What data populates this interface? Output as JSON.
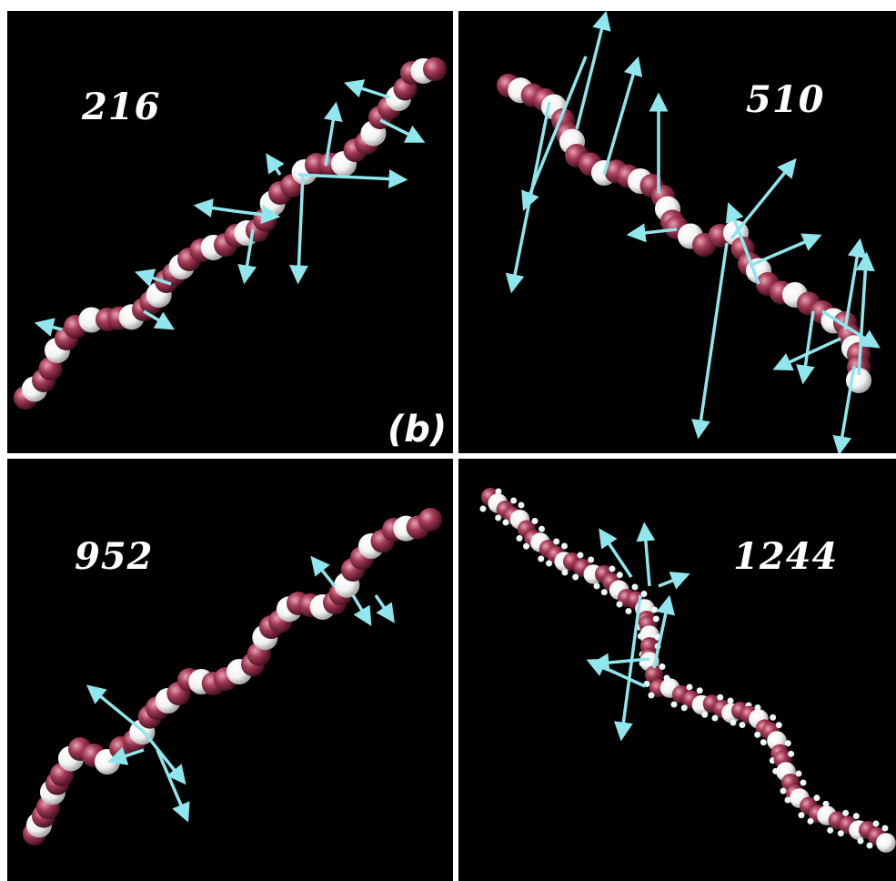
{
  "figure_label": "(b)",
  "colors": {
    "background": "#000000",
    "divider": "#ffffff",
    "atom_dark": "#a33a55",
    "atom_light": "#f2f2f2",
    "arrow": "#8fe6ec",
    "hydrogen": "#d9f2f2"
  },
  "panels": [
    {
      "label": "216"
    },
    {
      "label": "510"
    },
    {
      "label": "952"
    },
    {
      "label": "1244"
    }
  ]
}
